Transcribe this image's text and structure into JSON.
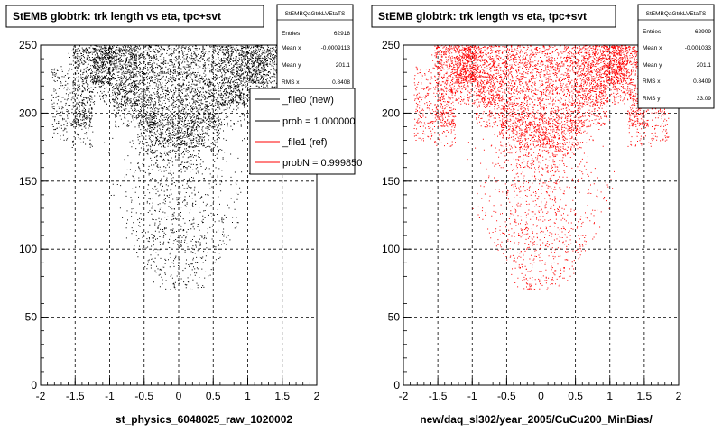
{
  "chart_data": [
    {
      "type": "scatter",
      "title": "StEMB globtrk: trk length vs eta, tpc+svt",
      "xlabel": "st_physics_6048025_raw_1020002",
      "ylabel": "",
      "xlim": [
        -2,
        2
      ],
      "ylim": [
        0,
        250
      ],
      "x_ticks": [
        "-2",
        "-1.5",
        "-1",
        "-0.5",
        "0",
        "0.5",
        "1",
        "1.5",
        "2"
      ],
      "y_ticks": [
        "0",
        "50",
        "100",
        "150",
        "200",
        "250"
      ],
      "grid": true,
      "marker_color": "#000000",
      "stats": {
        "name": "StEMBQaGtrkLVEtaTS",
        "rows": [
          {
            "label": "Entries",
            "value": "62918"
          },
          {
            "label": "Mean x",
            "value": "-0.0009113"
          },
          {
            "label": "Mean y",
            "value": "201.1"
          },
          {
            "label": "RMS x",
            "value": "0.8408"
          }
        ]
      },
      "legend": {
        "placement": "top-right",
        "entries": [
          {
            "label": "_file0 (new)",
            "color": "#000000"
          },
          {
            "label": "prob = 1.000000",
            "color": "#000000"
          },
          {
            "label": "_file1 (ref)",
            "color": "#ff0000"
          },
          {
            "label": "probN = 0.999850",
            "color": "#ff0000"
          }
        ]
      }
    },
    {
      "type": "scatter",
      "title": "StEMB globtrk: trk length vs eta, tpc+svt",
      "xlabel": "new/daq_sl302/year_2005/CuCu200_MinBias/",
      "ylabel": "",
      "xlim": [
        -2,
        2
      ],
      "ylim": [
        0,
        250
      ],
      "x_ticks": [
        "-2",
        "-1.5",
        "-1",
        "-0.5",
        "0",
        "0.5",
        "1",
        "1.5",
        "2"
      ],
      "y_ticks": [
        "0",
        "50",
        "100",
        "150",
        "200",
        "250"
      ],
      "grid": true,
      "marker_color": "#ff0000",
      "stats": {
        "name": "StEMBQaGtrkLVEtaTS",
        "rows": [
          {
            "label": "Entries",
            "value": "62909"
          },
          {
            "label": "Mean x",
            "value": "-0.001033"
          },
          {
            "label": "Mean y",
            "value": "201.1"
          },
          {
            "label": "RMS x",
            "value": "0.8409"
          },
          {
            "label": "RMS y",
            "value": "33.09"
          }
        ]
      }
    }
  ]
}
